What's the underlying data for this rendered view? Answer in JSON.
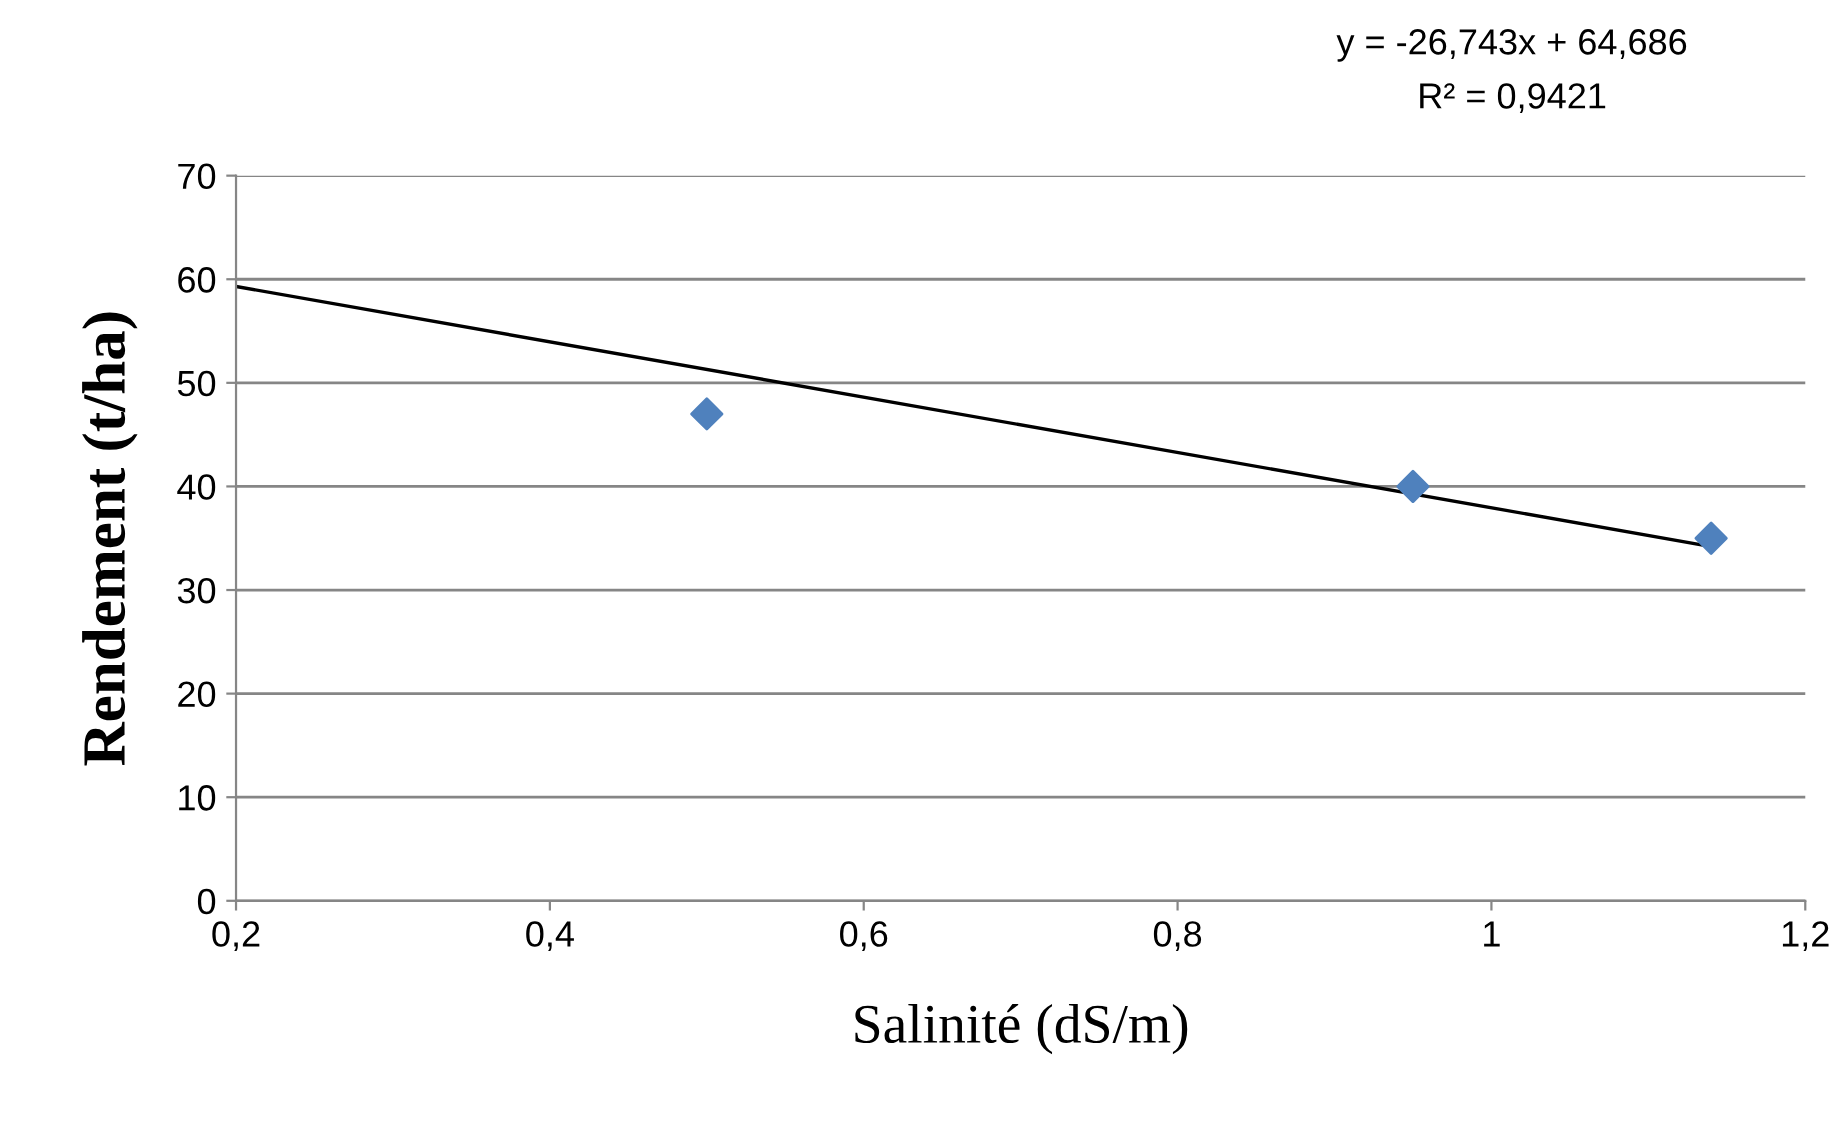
{
  "chart_data": {
    "type": "scatter",
    "xlabel": "Salinité (dS/m)",
    "ylabel": "Rendement (t/ha)",
    "annotations": [
      "y = -26,743x + 64,686",
      "R² = 0,9421"
    ],
    "series": [
      {
        "x": [
          0.5,
          0.95,
          1.14
        ],
        "values": [
          47,
          40,
          35
        ],
        "color": "#4f81bd",
        "marker": "diamond"
      },
      {
        "type": "line",
        "x": [
          0.2,
          1.14
        ],
        "values": [
          59.3,
          34.2
        ],
        "color": "#000000",
        "marker": "none",
        "line_style": "solid"
      }
    ],
    "xlim": [
      0.2,
      1.2
    ],
    "xticks": [
      {
        "value": 0.2,
        "label": "0,2"
      },
      {
        "value": 0.4,
        "label": "0,4"
      },
      {
        "value": 0.6,
        "label": "0,6"
      },
      {
        "value": 0.8,
        "label": "0,8"
      },
      {
        "value": 1,
        "label": "1"
      },
      {
        "value": 1.2,
        "label": "1,2"
      }
    ],
    "ylim": [
      0,
      70
    ],
    "yticks": [
      0,
      10,
      20,
      30,
      40,
      50,
      60,
      70
    ],
    "grid": "y",
    "legend": false
  }
}
